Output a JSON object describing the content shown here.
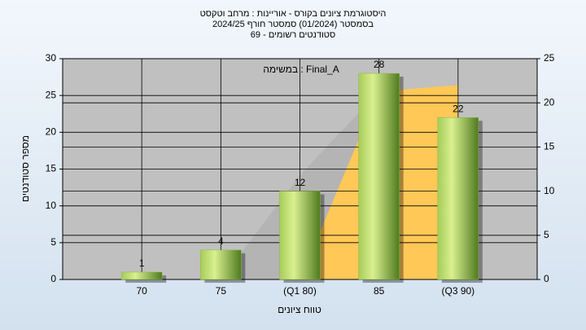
{
  "chart_data": {
    "type": "bar",
    "title": "היסטוגרמת ציונים בקורס - אוריינות : מרחב וטקסט",
    "subtitle": "בסמסטר  (01/2024)  סמסטר חורף 2024/25",
    "subtitle2": "69 - סטודנטים רשומים",
    "annotation": "במשימה : Final_A",
    "x_label": "טווח ציונים",
    "y_label": "מספר סטודנטים",
    "categories": [
      "70",
      "75",
      "(Q1 80)",
      "85",
      "(Q3 90)"
    ],
    "values": [
      1,
      4,
      12,
      28,
      22
    ],
    "color": "#8db843",
    "areas": [
      {
        "color": "#b4b4b4",
        "values": [
          null,
          0,
          11.8,
          21.3,
          null
        ]
      },
      {
        "color": "#ffc857",
        "values": [
          null,
          null,
          0,
          21.3,
          22
        ]
      }
    ],
    "ylim": [
      0,
      30
    ],
    "yticks": [
      0,
      5,
      10,
      15,
      20,
      25,
      30
    ],
    "y2lim": [
      0,
      25
    ],
    "y2ticks": [
      0,
      5,
      10,
      15,
      20,
      25
    ],
    "grid": true
  }
}
